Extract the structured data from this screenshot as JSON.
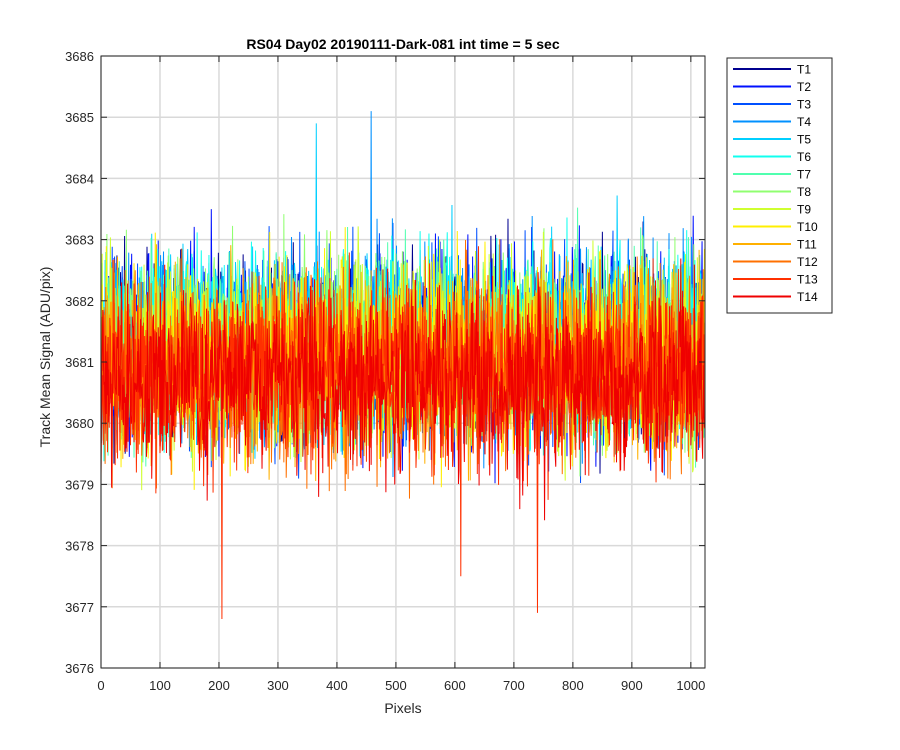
{
  "chart_data": {
    "type": "line",
    "title": "RS04 Day02 20190111-Dark-081 int time = 5 sec",
    "xlabel": "Pixels",
    "ylabel": "Track Mean Signal (ADU/pix)",
    "xlim": [
      0,
      1024
    ],
    "ylim": [
      3676,
      3686
    ],
    "xticks": [
      0,
      100,
      200,
      300,
      400,
      500,
      600,
      700,
      800,
      900,
      1000
    ],
    "yticks": [
      3676,
      3677,
      3678,
      3679,
      3680,
      3681,
      3682,
      3683,
      3684,
      3685,
      3686
    ],
    "grid": true,
    "legend_position": "outside-top-right",
    "series_summary": {
      "points_per_series": 1024,
      "approx_mean_adu": [
        3681.2,
        3681.2,
        3681.2,
        3681.3,
        3681.3,
        3681.3,
        3681.2,
        3681.2,
        3681.1,
        3681.1,
        3681.0,
        3680.9,
        3680.8,
        3680.7
      ],
      "approx_peak_to_peak_adu": 4.5,
      "notable_extremes": [
        {
          "series": "T4",
          "x": 458,
          "y": 3685.1
        },
        {
          "series": "T5",
          "x": 365,
          "y": 3684.9
        },
        {
          "series": "T13",
          "x": 205,
          "y": 3676.8
        },
        {
          "series": "T13",
          "x": 740,
          "y": 3676.9
        },
        {
          "series": "T13",
          "x": 610,
          "y": 3677.5
        }
      ]
    },
    "series": [
      {
        "name": "T1",
        "color": "#00008F"
      },
      {
        "name": "T2",
        "color": "#0010FF"
      },
      {
        "name": "T3",
        "color": "#0050FF"
      },
      {
        "name": "T4",
        "color": "#0090FF"
      },
      {
        "name": "T5",
        "color": "#00CFFF"
      },
      {
        "name": "T6",
        "color": "#10FFEF"
      },
      {
        "name": "T7",
        "color": "#50FFAF"
      },
      {
        "name": "T8",
        "color": "#90FF70"
      },
      {
        "name": "T9",
        "color": "#CFFF30"
      },
      {
        "name": "T10",
        "color": "#FFEF00"
      },
      {
        "name": "T11",
        "color": "#FFB000"
      },
      {
        "name": "T12",
        "color": "#FF7000"
      },
      {
        "name": "T13",
        "color": "#FF3000"
      },
      {
        "name": "T14",
        "color": "#EF0000"
      }
    ]
  }
}
